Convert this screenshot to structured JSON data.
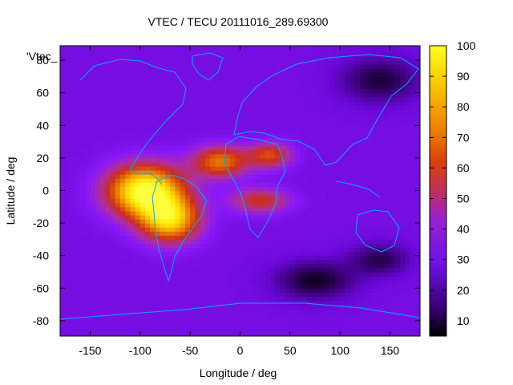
{
  "chart_data": {
    "type": "heatmap",
    "title": "VTEC / TECU 20111016_289.69300",
    "xlabel": "Longitude / deg",
    "ylabel": "Latitude / deg",
    "key_label": "'Vtec_",
    "xlim": [
      -180,
      180
    ],
    "ylim": [
      -90,
      90
    ],
    "xticks": [
      "-150",
      "-100",
      "-50",
      "0",
      "50",
      "100",
      "150"
    ],
    "yticks": [
      "80",
      "60",
      "40",
      "20",
      "0",
      "-20",
      "-40",
      "-60",
      "-80"
    ],
    "colorbar": {
      "range": [
        5,
        100
      ],
      "ticks": [
        "100",
        "90",
        "80",
        "70",
        "60",
        "50",
        "40",
        "30",
        "20",
        "10"
      ],
      "palette": [
        "#000000",
        "#3a0076",
        "#6a08d8",
        "#8a18f8",
        "#b0309a",
        "#cc2e1a",
        "#e46a00",
        "#f5ad00",
        "#ffe800",
        "#ffff40"
      ]
    },
    "colors": {
      "coastline": "#00aaff",
      "background": "#ffffff"
    },
    "features": [
      {
        "lon": -95,
        "lat": 0,
        "vtec": 100
      },
      {
        "lon": -70,
        "lat": -18,
        "vtec": 92
      },
      {
        "lon": -20,
        "lat": 18,
        "vtec": 70
      },
      {
        "lon": 30,
        "lat": 22,
        "vtec": 62
      },
      {
        "lon": 20,
        "lat": -6,
        "vtec": 58
      },
      {
        "lon": 75,
        "lat": -55,
        "vtec": 8
      },
      {
        "lon": 140,
        "lat": -42,
        "vtec": 10
      },
      {
        "lon": 140,
        "lat": 68,
        "vtec": 8
      }
    ]
  }
}
